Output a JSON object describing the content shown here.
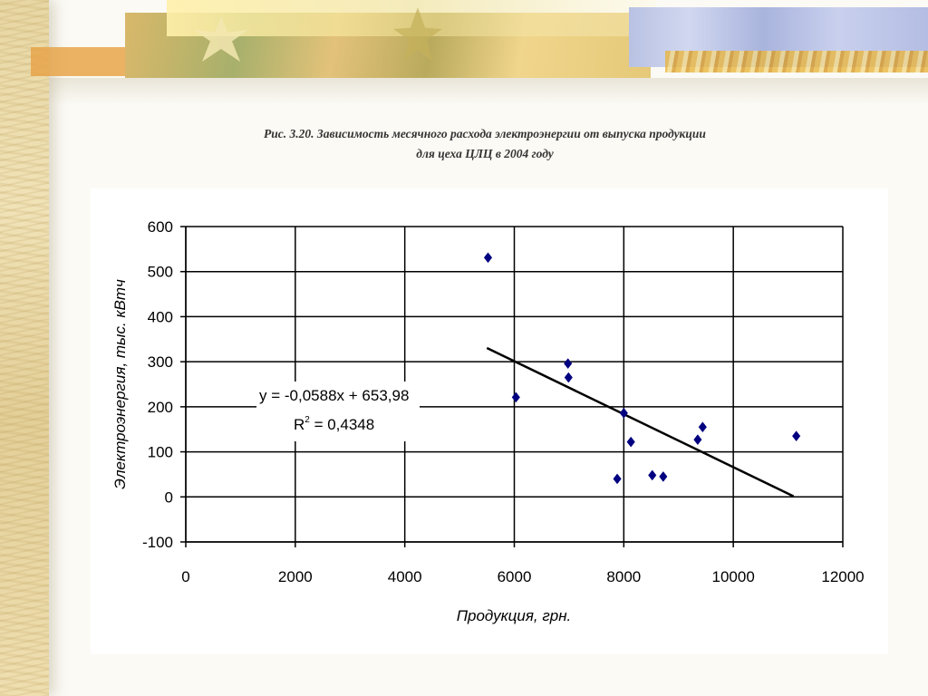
{
  "caption": {
    "line1": "Рис. 3.20. Зависимость месячного расхода электроэнергии от выпуска продукции",
    "line2": "для цеха ЦЛЦ в 2004 году"
  },
  "chart_data": {
    "type": "scatter",
    "xlabel": "Продукция, грн.",
    "ylabel": "Электроэнергия, тыс. кВтч",
    "xlim": [
      0,
      12000
    ],
    "ylim": [
      -100,
      600
    ],
    "xticks": [
      0,
      2000,
      4000,
      6000,
      8000,
      10000,
      12000
    ],
    "yticks": [
      -100,
      0,
      100,
      200,
      300,
      400,
      500,
      600
    ],
    "grid": true,
    "point_color": "#000080",
    "trendline_color": "#000000",
    "series": [
      {
        "points": [
          {
            "x": 5520,
            "y": 531
          },
          {
            "x": 6030,
            "y": 221
          },
          {
            "x": 6980,
            "y": 296
          },
          {
            "x": 6990,
            "y": 265
          },
          {
            "x": 7880,
            "y": 40
          },
          {
            "x": 8000,
            "y": 186
          },
          {
            "x": 8130,
            "y": 122
          },
          {
            "x": 8520,
            "y": 48
          },
          {
            "x": 8720,
            "y": 45
          },
          {
            "x": 9350,
            "y": 127
          },
          {
            "x": 9440,
            "y": 155
          },
          {
            "x": 11150,
            "y": 135
          }
        ]
      }
    ],
    "trendline": {
      "slope": -0.0588,
      "intercept": 653.98,
      "x_range": [
        5500,
        11100
      ],
      "equation": "y = -0,0588x + 653,98",
      "r2_label": "R",
      "r2_sup": "2",
      "r2_value": " = 0,4348"
    }
  }
}
